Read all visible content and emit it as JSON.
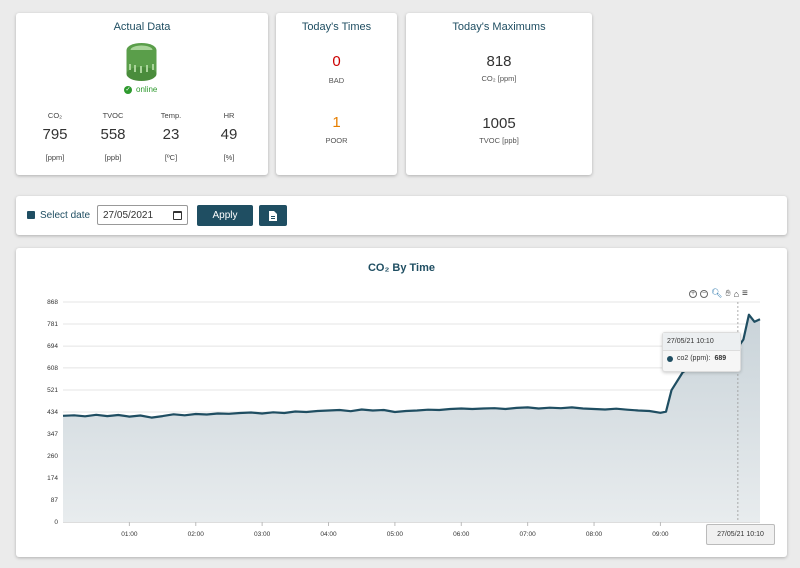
{
  "actual": {
    "title": "Actual Data",
    "status": "online",
    "metrics": [
      {
        "name": "CO₂",
        "value": "795",
        "unit": "[ppm]"
      },
      {
        "name": "TVOC",
        "value": "558",
        "unit": "[ppb]"
      },
      {
        "name": "Temp.",
        "value": "23",
        "unit": "[ºC]"
      },
      {
        "name": "HR",
        "value": "49",
        "unit": "[%]"
      }
    ]
  },
  "times": {
    "title": "Today's Times",
    "bad_value": "0",
    "bad_label": "BAD",
    "poor_value": "1",
    "poor_label": "POOR"
  },
  "maximums": {
    "title": "Today's Maximums",
    "co2_value": "818",
    "co2_label": "CO₂ [ppm]",
    "tvoc_value": "1005",
    "tvoc_label": "TVOC [ppb]"
  },
  "toolbar": {
    "select_label": "Select date",
    "date_value": "27/05/2021",
    "apply_label": "Apply"
  },
  "colors": {
    "accent": "#1f4e62",
    "bad": "#cc0000",
    "poor": "#e67e00",
    "online": "#2e9a2e",
    "line": "#1f4e62",
    "area": "#c9d3d9"
  },
  "tooltip": {
    "header": "27/05/21 10:10",
    "series": "co2 (ppm):",
    "value": "689",
    "x_label": "27/05/21 10:10"
  },
  "chart_data": {
    "type": "area",
    "title": "CO₂ By Time",
    "series": [
      {
        "name": "co2",
        "x": [
          "00:00",
          "00:10",
          "00:20",
          "00:30",
          "00:40",
          "00:50",
          "01:00",
          "01:10",
          "01:20",
          "01:30",
          "01:40",
          "01:50",
          "02:00",
          "02:10",
          "02:20",
          "02:30",
          "02:40",
          "02:50",
          "03:00",
          "03:10",
          "03:20",
          "03:30",
          "03:40",
          "03:50",
          "04:00",
          "04:10",
          "04:20",
          "04:30",
          "04:40",
          "04:50",
          "05:00",
          "05:10",
          "05:20",
          "05:30",
          "05:40",
          "05:50",
          "06:00",
          "06:10",
          "06:20",
          "06:30",
          "06:40",
          "06:50",
          "07:00",
          "07:10",
          "07:20",
          "07:30",
          "07:40",
          "07:50",
          "08:00",
          "08:10",
          "08:20",
          "08:30",
          "08:40",
          "08:50",
          "09:00",
          "09:05",
          "09:10",
          "09:20",
          "09:30",
          "09:40",
          "09:50",
          "10:00",
          "10:05",
          "10:10",
          "10:15",
          "10:20",
          "10:25",
          "10:30"
        ],
        "values": [
          419,
          421,
          417,
          423,
          418,
          422,
          416,
          420,
          412,
          418,
          425,
          421,
          426,
          424,
          428,
          427,
          430,
          432,
          428,
          433,
          430,
          436,
          434,
          438,
          440,
          442,
          437,
          444,
          440,
          442,
          434,
          438,
          440,
          443,
          442,
          446,
          448,
          446,
          448,
          449,
          446,
          450,
          452,
          448,
          451,
          449,
          452,
          448,
          446,
          444,
          447,
          443,
          440,
          438,
          431,
          435,
          520,
          590,
          620,
          640,
          630,
          650,
          640,
          689,
          720,
          818,
          790,
          800
        ]
      }
    ],
    "x_ticks": [
      "01:00",
      "02:00",
      "03:00",
      "04:00",
      "05:00",
      "06:00",
      "07:00",
      "08:00",
      "09:00"
    ],
    "y_ticks": [
      "0",
      "87",
      "174",
      "260",
      "347",
      "434",
      "521",
      "608",
      "694",
      "781",
      "868"
    ],
    "ylim": [
      0,
      868
    ],
    "grid": true
  }
}
